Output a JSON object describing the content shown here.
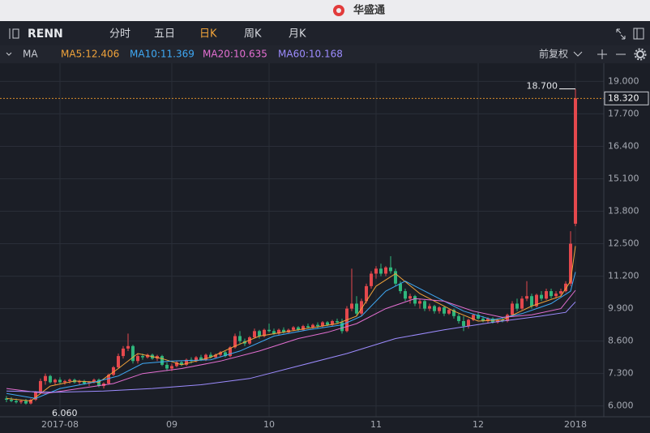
{
  "app": {
    "title": "华盛通",
    "symbol": "RENN",
    "tabs": [
      "分时",
      "五日",
      "日K",
      "周K",
      "月K"
    ],
    "indicator": "MA",
    "adjust": "前复权"
  },
  "chart_data": {
    "type": "candlestick",
    "up_color": "#e5484d",
    "down_color": "#2fb67c",
    "grid": true,
    "xlim": [
      -1.33,
      122.83
    ],
    "xticks": [
      {
        "value": 11,
        "label": "2017-08"
      },
      {
        "value": 34,
        "label": "09"
      },
      {
        "value": 54,
        "label": "10"
      },
      {
        "value": 76,
        "label": "11"
      },
      {
        "value": 97,
        "label": "12"
      },
      {
        "value": 117,
        "label": "2018"
      }
    ],
    "ylim": [
      5.6,
      19.5
    ],
    "yticks": [
      {
        "value": 6,
        "label": "6.000"
      },
      {
        "value": 7.3,
        "label": "7.300"
      },
      {
        "value": 8.6,
        "label": "8.600"
      },
      {
        "value": 9.9,
        "label": "9.900"
      },
      {
        "value": 11.2,
        "label": "11.200"
      },
      {
        "value": 12.5,
        "label": "12.500"
      },
      {
        "value": 13.8,
        "label": "13.800"
      },
      {
        "value": 15.1,
        "label": "15.100"
      },
      {
        "value": 16.4,
        "label": "16.400"
      },
      {
        "value": 17.7,
        "label": "17.700"
      },
      {
        "value": 19,
        "label": "19.000"
      }
    ],
    "candles": [
      [
        6.3,
        6.4,
        6.15,
        6.25
      ],
      [
        6.25,
        6.35,
        6.15,
        6.2
      ],
      [
        6.2,
        6.3,
        6.1,
        6.15
      ],
      [
        6.15,
        6.25,
        6.08,
        6.2
      ],
      [
        6.2,
        6.28,
        6.06,
        6.1
      ],
      [
        6.1,
        6.3,
        6.06,
        6.25
      ],
      [
        6.25,
        6.6,
        6.2,
        6.55
      ],
      [
        6.55,
        7.1,
        6.5,
        7.0
      ],
      [
        7.0,
        7.3,
        6.85,
        7.2
      ],
      [
        7.2,
        7.25,
        6.9,
        6.95
      ],
      [
        6.95,
        7.1,
        6.85,
        7.05
      ],
      [
        7.05,
        7.15,
        6.9,
        6.95
      ],
      [
        6.95,
        7.05,
        6.85,
        7.0
      ],
      [
        7.0,
        7.1,
        6.9,
        7.05
      ],
      [
        7.05,
        7.1,
        6.9,
        6.95
      ],
      [
        6.95,
        7.05,
        6.85,
        7.0
      ],
      [
        7.0,
        7.05,
        6.85,
        6.9
      ],
      [
        6.9,
        7.0,
        6.8,
        6.95
      ],
      [
        6.95,
        7.1,
        6.9,
        7.05
      ],
      [
        7.05,
        7.1,
        6.75,
        6.8
      ],
      [
        6.8,
        6.95,
        6.7,
        6.9
      ],
      [
        6.9,
        7.3,
        6.85,
        7.25
      ],
      [
        7.25,
        7.6,
        7.2,
        7.55
      ],
      [
        7.55,
        8.1,
        7.5,
        8.0
      ],
      [
        8.0,
        8.4,
        7.9,
        8.3
      ],
      [
        8.3,
        8.9,
        8.2,
        8.4
      ],
      [
        8.4,
        8.45,
        7.7,
        7.8
      ],
      [
        7.8,
        8.1,
        7.7,
        8.0
      ],
      [
        8.0,
        8.1,
        7.85,
        7.95
      ],
      [
        7.95,
        8.1,
        7.9,
        8.05
      ],
      [
        8.05,
        8.1,
        7.85,
        7.9
      ],
      [
        7.9,
        8.05,
        7.8,
        8.0
      ],
      [
        8.0,
        8.05,
        7.6,
        7.65
      ],
      [
        7.65,
        7.75,
        7.4,
        7.5
      ],
      [
        7.5,
        7.7,
        7.4,
        7.6
      ],
      [
        7.6,
        7.8,
        7.55,
        7.75
      ],
      [
        7.75,
        7.8,
        7.6,
        7.65
      ],
      [
        7.65,
        7.9,
        7.6,
        7.85
      ],
      [
        7.85,
        7.95,
        7.7,
        7.8
      ],
      [
        7.8,
        8.0,
        7.75,
        7.95
      ],
      [
        7.95,
        8.05,
        7.8,
        7.85
      ],
      [
        7.85,
        8.1,
        7.8,
        8.05
      ],
      [
        8.05,
        8.15,
        7.9,
        7.95
      ],
      [
        7.95,
        8.1,
        7.9,
        8.05
      ],
      [
        8.05,
        8.2,
        7.95,
        8.15
      ],
      [
        8.15,
        8.2,
        7.95,
        8.0
      ],
      [
        8.0,
        8.4,
        7.95,
        8.35
      ],
      [
        8.35,
        8.9,
        8.3,
        8.8
      ],
      [
        8.8,
        9.0,
        8.5,
        8.6
      ],
      [
        8.6,
        8.7,
        8.4,
        8.5
      ],
      [
        8.5,
        8.8,
        8.45,
        8.75
      ],
      [
        8.75,
        9.1,
        8.7,
        9.0
      ],
      [
        9.0,
        9.05,
        8.7,
        8.8
      ],
      [
        8.8,
        9.1,
        8.75,
        9.05
      ],
      [
        9.05,
        9.3,
        8.95,
        9.0
      ],
      [
        9.0,
        9.1,
        8.85,
        8.9
      ],
      [
        8.9,
        9.1,
        8.85,
        9.05
      ],
      [
        9.05,
        9.15,
        8.9,
        8.95
      ],
      [
        8.95,
        9.1,
        8.9,
        9.05
      ],
      [
        9.05,
        9.2,
        9.0,
        9.15
      ],
      [
        9.15,
        9.2,
        9.0,
        9.05
      ],
      [
        9.05,
        9.25,
        9.0,
        9.2
      ],
      [
        9.2,
        9.3,
        9.1,
        9.15
      ],
      [
        9.15,
        9.3,
        9.1,
        9.25
      ],
      [
        9.25,
        9.35,
        9.1,
        9.2
      ],
      [
        9.2,
        9.4,
        9.15,
        9.35
      ],
      [
        9.35,
        9.4,
        9.2,
        9.25
      ],
      [
        9.25,
        9.45,
        9.2,
        9.4
      ],
      [
        9.4,
        9.5,
        9.3,
        9.35
      ],
      [
        9.35,
        9.5,
        8.9,
        9.0
      ],
      [
        9.0,
        10.0,
        8.95,
        9.9
      ],
      [
        9.9,
        11.5,
        9.8,
        10.1
      ],
      [
        10.1,
        10.4,
        9.6,
        9.7
      ],
      [
        9.7,
        10.3,
        9.6,
        10.2
      ],
      [
        10.2,
        10.9,
        10.1,
        10.8
      ],
      [
        10.8,
        11.4,
        10.7,
        11.3
      ],
      [
        11.3,
        11.6,
        11.1,
        11.5
      ],
      [
        11.5,
        11.7,
        11.2,
        11.3
      ],
      [
        11.3,
        11.6,
        11.2,
        11.55
      ],
      [
        11.55,
        12.0,
        11.3,
        11.4
      ],
      [
        11.4,
        11.5,
        10.8,
        10.9
      ],
      [
        10.9,
        11.0,
        10.5,
        10.6
      ],
      [
        10.6,
        10.7,
        10.2,
        10.3
      ],
      [
        10.3,
        10.5,
        10.1,
        10.4
      ],
      [
        10.4,
        10.45,
        10.0,
        10.1
      ],
      [
        10.1,
        10.3,
        9.9,
        10.2
      ],
      [
        10.2,
        10.25,
        9.8,
        9.9
      ],
      [
        9.9,
        10.1,
        9.8,
        10.0
      ],
      [
        10.0,
        10.05,
        9.7,
        9.8
      ],
      [
        9.8,
        10.0,
        9.7,
        9.95
      ],
      [
        9.95,
        10.0,
        9.6,
        9.7
      ],
      [
        9.7,
        9.9,
        9.65,
        9.85
      ],
      [
        9.85,
        9.9,
        9.5,
        9.6
      ],
      [
        9.6,
        9.7,
        9.3,
        9.4
      ],
      [
        9.4,
        9.6,
        9.0,
        9.2
      ],
      [
        9.2,
        9.5,
        9.1,
        9.45
      ],
      [
        9.45,
        9.7,
        9.4,
        9.65
      ],
      [
        9.65,
        9.75,
        9.45,
        9.5
      ],
      [
        9.5,
        9.6,
        9.35,
        9.4
      ],
      [
        9.4,
        9.55,
        9.3,
        9.5
      ],
      [
        9.5,
        9.55,
        9.3,
        9.35
      ],
      [
        9.35,
        9.5,
        9.3,
        9.45
      ],
      [
        9.45,
        9.55,
        9.35,
        9.4
      ],
      [
        9.4,
        9.7,
        9.35,
        9.65
      ],
      [
        9.65,
        10.2,
        9.6,
        10.1
      ],
      [
        10.1,
        10.3,
        9.8,
        9.9
      ],
      [
        9.9,
        10.4,
        9.85,
        10.3
      ],
      [
        10.3,
        11.0,
        10.2,
        10.4
      ],
      [
        10.4,
        10.5,
        9.9,
        10.0
      ],
      [
        10.0,
        10.5,
        9.95,
        10.45
      ],
      [
        10.45,
        10.6,
        10.2,
        10.3
      ],
      [
        10.3,
        10.7,
        10.25,
        10.6
      ],
      [
        10.6,
        10.7,
        10.3,
        10.4
      ],
      [
        10.4,
        10.6,
        10.3,
        10.5
      ],
      [
        10.5,
        10.7,
        10.4,
        10.6
      ],
      [
        10.6,
        11.0,
        10.55,
        10.9
      ],
      [
        10.9,
        13.0,
        10.8,
        12.5
      ],
      [
        13.3,
        18.7,
        13.2,
        18.32
      ]
    ],
    "series": [
      {
        "name": "MA5:12.406",
        "color": "#f0a33a",
        "x": [
          0,
          5,
          9,
          14,
          19,
          23,
          27,
          32,
          36,
          42,
          47,
          52,
          60,
          68,
          72,
          76,
          80,
          85,
          92,
          97,
          102,
          108,
          114,
          116,
          117
        ],
        "values": [
          6.3,
          6.2,
          6.8,
          7.0,
          6.95,
          7.5,
          8.1,
          7.9,
          7.65,
          7.95,
          8.4,
          8.8,
          9.05,
          9.3,
          9.6,
          10.8,
          11.3,
          10.5,
          9.8,
          9.4,
          9.45,
          10.0,
          10.4,
          11.0,
          12.406
        ]
      },
      {
        "name": "MA10:11.369",
        "color": "#3fa9f5",
        "x": [
          0,
          6,
          11,
          18,
          23,
          28,
          34,
          42,
          48,
          55,
          62,
          69,
          73,
          78,
          82,
          88,
          94,
          100,
          106,
          112,
          116,
          117
        ],
        "values": [
          6.5,
          6.3,
          6.7,
          6.95,
          7.2,
          7.7,
          7.8,
          7.85,
          8.2,
          8.8,
          9.05,
          9.25,
          9.6,
          10.6,
          11.0,
          10.4,
          9.8,
          9.45,
          9.7,
          10.1,
          10.6,
          11.369
        ]
      },
      {
        "name": "MA20:10.635",
        "color": "#e46fd2",
        "x": [
          0,
          8,
          15,
          22,
          28,
          36,
          44,
          52,
          60,
          66,
          72,
          78,
          84,
          90,
          96,
          102,
          108,
          114,
          117
        ],
        "values": [
          6.7,
          6.5,
          6.7,
          6.9,
          7.3,
          7.5,
          7.8,
          8.2,
          8.7,
          8.95,
          9.3,
          9.9,
          10.3,
          10.2,
          9.8,
          9.55,
          9.65,
          9.9,
          10.635
        ]
      },
      {
        "name": "MA60:10.168",
        "color": "#9d8cff",
        "x": [
          0,
          10,
          20,
          30,
          40,
          50,
          60,
          70,
          80,
          90,
          100,
          110,
          115,
          117
        ],
        "values": [
          6.6,
          6.55,
          6.6,
          6.7,
          6.85,
          7.1,
          7.6,
          8.1,
          8.7,
          9.05,
          9.35,
          9.6,
          9.75,
          10.168
        ]
      }
    ],
    "max_label": {
      "value": 18.7,
      "label": "18.700"
    },
    "min_label": {
      "value": 6.06,
      "label": "6.060"
    },
    "last_price": {
      "value": 18.32,
      "label": "18.320",
      "color": "#d98b2b"
    }
  }
}
